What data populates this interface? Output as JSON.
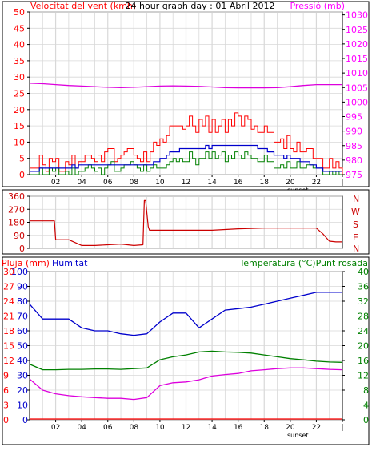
{
  "colors": {
    "red": "#ff0000",
    "darkred": "#cc0000",
    "blue": "#0000cc",
    "green": "#008000",
    "magenta": "#dd00dd",
    "grid": "#d8d8d8",
    "border": "#000000"
  },
  "panel1": {
    "title": "24 hour graph day : 01 Abril 2012",
    "left_label": "Velocitat del vent (kmh)",
    "right_label": "Pressió (mb)",
    "x_marker": "sunset"
  },
  "panel2": {
    "x_marker": "sunset",
    "compass_labels": [
      "N",
      "W",
      "S",
      "E",
      "N"
    ]
  },
  "panel3": {
    "left_label_rain": "Pluja (mm)",
    "left_label_hum": "Humitat",
    "right_label": "Temperatura (°C)Punt rosada",
    "x_marker": "sunset"
  },
  "chart_data": [
    {
      "type": "line",
      "title": "24 hour graph day : 01 Abril 2012",
      "x_ticks": [
        "02",
        "04",
        "06",
        "08",
        "10",
        "12",
        "14",
        "16",
        "18",
        "20",
        "22",
        "|"
      ],
      "xlim": [
        0,
        24
      ],
      "ylabel_left": "Velocitat del vent (kmh)",
      "yticks_left": [
        0,
        5,
        10,
        15,
        20,
        25,
        30,
        35,
        40,
        45,
        50
      ],
      "ylim_left": [
        0,
        50
      ],
      "ylabel_right": "Pressió (mb)",
      "yticks_right": [
        975,
        980,
        985,
        990,
        995,
        1000,
        1005,
        1010,
        1015,
        1020,
        1025,
        1030
      ],
      "ylim_right": [
        975,
        1031
      ],
      "series": [
        {
          "key": "pressure",
          "axis": "right",
          "color": "#dd00dd",
          "x": [
            0,
            1,
            2,
            3,
            4,
            5,
            6,
            7,
            8,
            9,
            10,
            11,
            12,
            13,
            14,
            15,
            16,
            17,
            18,
            19,
            20,
            21,
            22,
            23,
            24
          ],
          "y": [
            1006.5,
            1006.3,
            1006.0,
            1005.7,
            1005.5,
            1005.3,
            1005.1,
            1005.0,
            1005.1,
            1005.3,
            1005.5,
            1005.6,
            1005.5,
            1005.4,
            1005.2,
            1005.0,
            1004.9,
            1004.9,
            1004.9,
            1005.0,
            1005.3,
            1005.7,
            1006.0,
            1006.0,
            1006.0
          ]
        },
        {
          "key": "gust",
          "axis": "left",
          "color": "#ff0000",
          "x": [
            0,
            1,
            2,
            3,
            4,
            5,
            6,
            7,
            8,
            9,
            10,
            11,
            12,
            13,
            14,
            15,
            16,
            17,
            18,
            19,
            20,
            21,
            22,
            23,
            24
          ],
          "y": [
            2,
            4,
            3,
            4,
            5,
            6,
            6,
            6,
            5,
            6,
            12,
            14,
            16,
            16,
            15,
            16,
            16,
            16,
            14,
            12,
            9,
            7,
            4,
            3,
            2
          ]
        },
        {
          "key": "speed",
          "axis": "left",
          "color": "#0000cc",
          "x": [
            0,
            1,
            2,
            3,
            4,
            5,
            6,
            7,
            8,
            9,
            10,
            11,
            12,
            13,
            14,
            15,
            16,
            17,
            18,
            19,
            20,
            21,
            22,
            23,
            24
          ],
          "y": [
            1,
            2,
            2,
            2,
            3,
            3,
            3,
            3,
            3,
            3,
            5,
            7,
            8,
            8,
            9,
            9,
            9,
            9,
            8,
            6,
            5,
            4,
            2,
            1,
            1
          ]
        },
        {
          "key": "avg",
          "axis": "left",
          "color": "#008000",
          "x": [
            0,
            1,
            2,
            3,
            4,
            5,
            6,
            7,
            8,
            9,
            10,
            11,
            12,
            13,
            14,
            15,
            16,
            17,
            18,
            19,
            20,
            21,
            22,
            23,
            24
          ],
          "y": [
            0,
            1,
            1,
            1,
            2,
            2,
            2,
            2,
            2,
            2,
            3,
            4,
            5,
            5,
            6,
            6,
            5,
            6,
            5,
            3,
            3,
            2,
            1,
            0,
            0
          ]
        }
      ]
    },
    {
      "type": "line",
      "x_ticks": [],
      "xlim": [
        0,
        24
      ],
      "yticks_left": [
        0,
        90,
        180,
        270,
        360
      ],
      "ylim_left": [
        0,
        360
      ],
      "ylabel_right_letters": [
        "N",
        "W",
        "S",
        "E",
        "N"
      ],
      "series": [
        {
          "key": "direction",
          "axis": "left",
          "color": "#cc0000",
          "x": [
            0,
            1.9,
            2.0,
            3.0,
            4.0,
            5.0,
            6.0,
            7.0,
            8.0,
            8.7,
            8.8,
            8.9,
            9.1,
            9.2,
            10,
            12,
            14,
            16,
            18,
            20,
            21,
            22,
            22.5,
            23,
            23.5,
            24
          ],
          "y": [
            190,
            190,
            60,
            60,
            20,
            20,
            25,
            30,
            20,
            25,
            330,
            330,
            150,
            125,
            125,
            125,
            125,
            135,
            140,
            140,
            140,
            140,
            100,
            50,
            45,
            45
          ]
        }
      ]
    },
    {
      "type": "line",
      "x_ticks": [
        "02",
        "04",
        "06",
        "08",
        "10",
        "12",
        "14",
        "16",
        "18",
        "20",
        "22",
        "|"
      ],
      "xlim": [
        0,
        24
      ],
      "ylabel_left_rain": "Pluja (mm)",
      "yticks_rain": [
        0,
        3,
        6,
        9,
        12,
        15,
        18,
        21,
        24,
        27,
        30
      ],
      "ylim_rain": [
        0,
        30
      ],
      "ylabel_left_hum": "Humitat",
      "yticks_hum": [
        0,
        10,
        20,
        30,
        40,
        50,
        60,
        70,
        80,
        90,
        100
      ],
      "ylim_hum": [
        0,
        100
      ],
      "ylabel_right": "Temperatura (°C)Punt rosada",
      "yticks_right": [
        0,
        4,
        8,
        12,
        16,
        20,
        24,
        28,
        32,
        36,
        40
      ],
      "ylim_right": [
        0,
        40
      ],
      "series": [
        {
          "key": "rain",
          "axis": "rain",
          "color": "#ff0000",
          "x": [
            0,
            24
          ],
          "y": [
            0,
            0
          ]
        },
        {
          "key": "humidity",
          "axis": "hum",
          "color": "#0000cc",
          "x": [
            0,
            1,
            2,
            3,
            4,
            5,
            6,
            7,
            8,
            9,
            10,
            11,
            12,
            13,
            14,
            15,
            16,
            17,
            18,
            19,
            20,
            21,
            22,
            23,
            24
          ],
          "y": [
            78,
            68,
            68,
            68,
            62,
            60,
            60,
            58,
            57,
            58,
            66,
            72,
            72,
            62,
            68,
            74,
            75,
            76,
            78,
            80,
            82,
            84,
            86,
            86,
            86
          ]
        },
        {
          "key": "temperature",
          "axis": "right",
          "color": "#008000",
          "x": [
            0,
            1,
            2,
            3,
            4,
            5,
            6,
            7,
            8,
            9,
            10,
            11,
            12,
            13,
            14,
            15,
            16,
            17,
            18,
            19,
            20,
            21,
            22,
            23,
            24
          ],
          "y": [
            15,
            13.5,
            13.5,
            13.6,
            13.6,
            13.7,
            13.7,
            13.6,
            13.8,
            14.0,
            16.2,
            17.0,
            17.5,
            18.3,
            18.5,
            18.3,
            18.2,
            18.0,
            17.5,
            17.0,
            16.5,
            16.2,
            15.8,
            15.6,
            15.5
          ]
        },
        {
          "key": "dewpoint",
          "axis": "right",
          "color": "#dd00dd",
          "x": [
            0,
            1,
            2,
            3,
            4,
            5,
            6,
            7,
            8,
            9,
            10,
            11,
            12,
            13,
            14,
            15,
            16,
            17,
            18,
            19,
            20,
            21,
            22,
            23,
            24
          ],
          "y": [
            11,
            8,
            7,
            6.5,
            6.2,
            6.0,
            5.8,
            5.8,
            5.5,
            6.0,
            9.2,
            10.0,
            10.2,
            10.8,
            11.8,
            12.2,
            12.5,
            13.2,
            13.5,
            13.8,
            14.0,
            14.0,
            13.8,
            13.6,
            13.5
          ]
        }
      ]
    }
  ]
}
